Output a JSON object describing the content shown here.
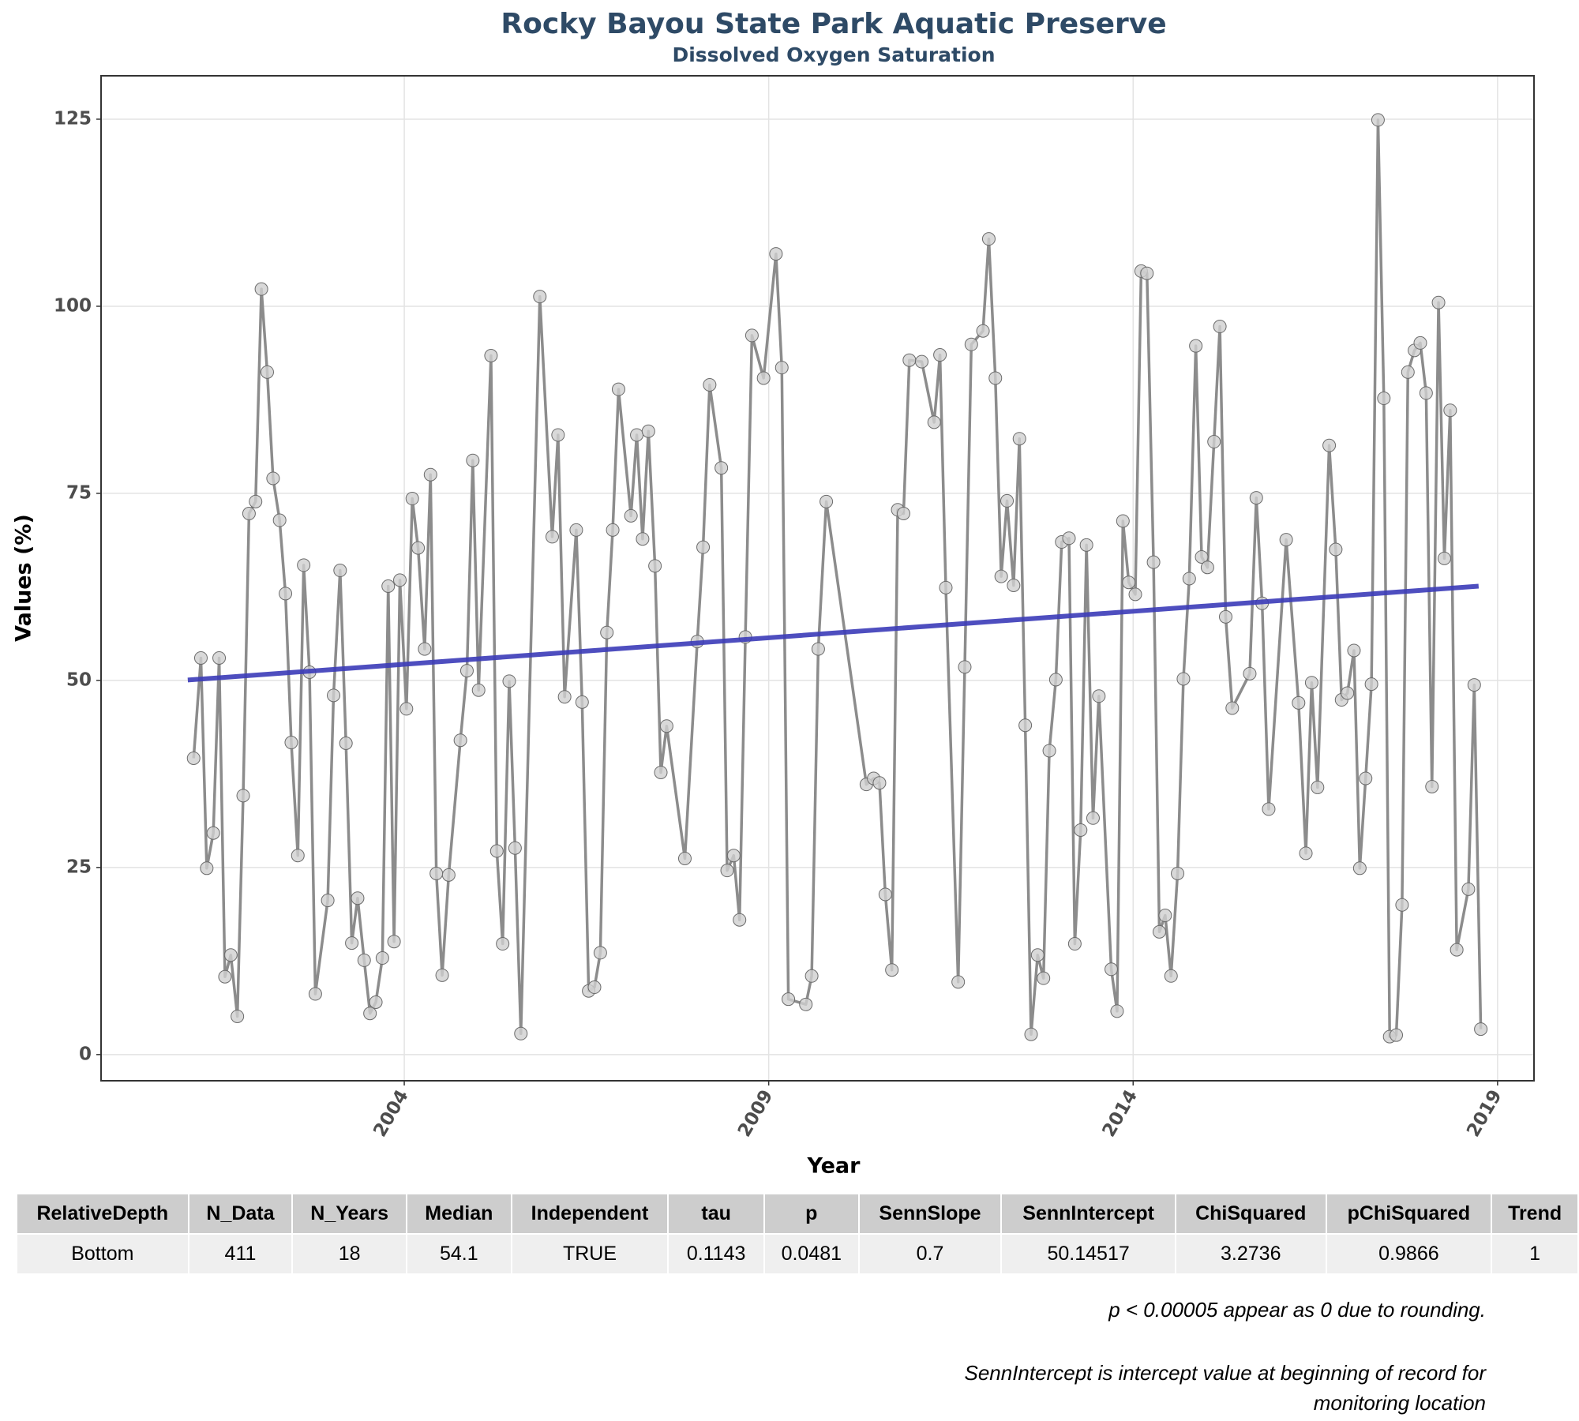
{
  "chart_data": {
    "type": "line",
    "title": "Rocky Bayou State Park Aquatic Preserve",
    "subtitle": "Dissolved Oxygen Saturation",
    "x_label": "Year",
    "y_label": "Values (%)",
    "color": "#8c8c8c",
    "marker_color": "#cfcfcf",
    "grid": true,
    "xlim": [
      1999.84,
      2019.5
    ],
    "xticks": [
      2004,
      2009,
      2014,
      2019
    ],
    "ylim": [
      -3.5,
      130.8
    ],
    "yticks": [
      0,
      25,
      50,
      75,
      100,
      125
    ],
    "x": [
      2001.11,
      2001.21,
      2001.29,
      2001.38,
      2001.46,
      2001.54,
      2001.62,
      2001.71,
      2001.79,
      2001.87,
      2001.96,
      2002.04,
      2002.12,
      2002.2,
      2002.29,
      2002.37,
      2002.45,
      2002.54,
      2002.62,
      2002.7,
      2002.78,
      2002.95,
      2003.03,
      2003.12,
      2003.2,
      2003.28,
      2003.36,
      2003.45,
      2003.53,
      2003.61,
      2003.7,
      2003.78,
      2003.86,
      2003.94,
      2004.03,
      2004.11,
      2004.19,
      2004.28,
      2004.36,
      2004.44,
      2004.52,
      2004.61,
      2004.77,
      2004.86,
      2004.94,
      2005.02,
      2005.19,
      2005.27,
      2005.35,
      2005.44,
      2005.52,
      2005.6,
      2005.86,
      2006.03,
      2006.11,
      2006.2,
      2006.36,
      2006.44,
      2006.53,
      2006.61,
      2006.69,
      2006.78,
      2006.86,
      2006.94,
      2007.11,
      2007.19,
      2007.27,
      2007.35,
      2007.44,
      2007.52,
      2007.6,
      2007.85,
      2008.02,
      2008.1,
      2008.19,
      2008.35,
      2008.43,
      2008.52,
      2008.6,
      2008.68,
      2008.77,
      2008.93,
      2009.1,
      2009.18,
      2009.27,
      2009.51,
      2009.59,
      2009.68,
      2009.79,
      2010.34,
      2010.44,
      2010.52,
      2010.6,
      2010.69,
      2010.77,
      2010.85,
      2010.93,
      2011.1,
      2011.27,
      2011.35,
      2011.43,
      2011.6,
      2011.69,
      2011.78,
      2011.94,
      2012.02,
      2012.11,
      2012.19,
      2012.27,
      2012.36,
      2012.44,
      2012.52,
      2012.6,
      2012.69,
      2012.77,
      2012.85,
      2012.94,
      2013.02,
      2013.12,
      2013.2,
      2013.28,
      2013.36,
      2013.45,
      2013.53,
      2013.7,
      2013.78,
      2013.86,
      2013.94,
      2014.03,
      2014.11,
      2014.19,
      2014.28,
      2014.36,
      2014.44,
      2014.52,
      2014.61,
      2014.69,
      2014.77,
      2014.86,
      2014.94,
      2015.02,
      2015.11,
      2015.19,
      2015.27,
      2015.36,
      2015.6,
      2015.69,
      2015.77,
      2015.86,
      2016.1,
      2016.27,
      2016.37,
      2016.45,
      2016.53,
      2016.69,
      2016.78,
      2016.86,
      2016.94,
      2017.03,
      2017.11,
      2017.19,
      2017.27,
      2017.36,
      2017.44,
      2017.52,
      2017.61,
      2017.69,
      2017.77,
      2017.86,
      2017.94,
      2018.02,
      2018.1,
      2018.19,
      2018.27,
      2018.35,
      2018.44,
      2018.6,
      2018.68,
      2018.77
    ],
    "values": [
      39.6,
      53,
      24.9,
      29.6,
      53,
      10.4,
      13.3,
      5.1,
      34.6,
      72.3,
      73.9,
      102.3,
      91.2,
      77,
      71.4,
      61.6,
      41.7,
      26.6,
      65.4,
      51.1,
      8.1,
      20.6,
      48,
      64.7,
      41.6,
      14.9,
      20.9,
      12.6,
      5.5,
      7,
      12.9,
      62.6,
      15.1,
      63.4,
      46.2,
      74.3,
      67.7,
      54.2,
      77.5,
      24.2,
      10.6,
      24,
      42,
      51.3,
      79.4,
      48.7,
      93.4,
      27.2,
      14.8,
      49.9,
      27.6,
      2.8,
      101.3,
      69.2,
      82.8,
      47.8,
      70.1,
      47.1,
      8.5,
      9,
      13.6,
      56.4,
      70.1,
      88.9,
      72,
      82.8,
      68.9,
      83.3,
      65.3,
      37.7,
      43.9,
      26.2,
      55.2,
      67.8,
      89.5,
      78.4,
      24.6,
      26.6,
      18,
      55.8,
      96.1,
      90.4,
      107,
      91.8,
      7.4,
      6.7,
      10.5,
      54.2,
      73.9,
      36.1,
      36.9,
      36.3,
      21.4,
      11.3,
      72.8,
      72.3,
      92.8,
      92.6,
      84.5,
      93.5,
      62.4,
      9.7,
      51.8,
      94.9,
      96.7,
      109,
      90.4,
      63.9,
      74,
      62.7,
      82.3,
      44,
      2.7,
      13.3,
      10.2,
      40.6,
      50.1,
      68.5,
      69,
      14.8,
      30,
      68.1,
      31.6,
      47.9,
      11.4,
      5.8,
      71.3,
      63.1,
      61.5,
      104.7,
      104.4,
      65.8,
      16.4,
      18.6,
      10.5,
      24.2,
      50.2,
      63.6,
      94.7,
      66.5,
      65.1,
      81.9,
      97.3,
      58.5,
      46.3,
      50.9,
      74.4,
      60.3,
      32.8,
      68.8,
      47,
      26.9,
      49.7,
      35.7,
      81.4,
      67.5,
      47.4,
      48.3,
      54,
      24.9,
      36.9,
      49.5,
      124.9,
      87.7,
      2.4,
      2.6,
      20,
      91.2,
      94.1,
      95.1,
      88.4,
      35.8,
      100.5,
      66.3,
      86.1,
      14,
      22.1,
      49.4,
      3.4
    ],
    "trend": {
      "x": [
        2001.03,
        2018.74
      ],
      "values": [
        50.05,
        62.6
      ],
      "color": "#3b3bb8"
    }
  },
  "table": {
    "columns": [
      "RelativeDepth",
      "N_Data",
      "N_Years",
      "Median",
      "Independent",
      "tau",
      "p",
      "SennSlope",
      "SennIntercept",
      "ChiSquared",
      "pChiSquared",
      "Trend"
    ],
    "rows": [
      [
        "Bottom",
        411,
        18,
        54.1,
        "TRUE",
        0.1143,
        0.0481,
        0.7,
        50.14517,
        3.2736,
        0.9866,
        1
      ]
    ]
  },
  "notes": [
    "p < 0.00005 appear as 0 due to rounding.",
    "SennIntercept is intercept value at beginning of record for monitoring location"
  ]
}
